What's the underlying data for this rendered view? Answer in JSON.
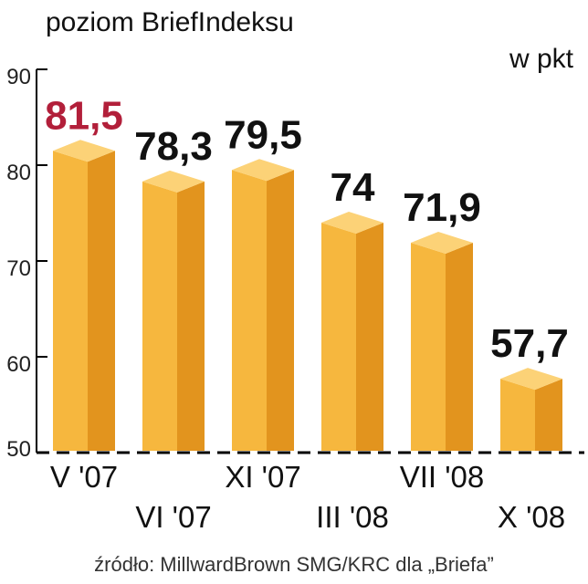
{
  "chart_data": {
    "type": "bar",
    "title": "poziom BriefIndeksu",
    "unit": "w pkt",
    "categories": [
      "V '07",
      "VI '07",
      "XI '07",
      "III '08",
      "VII '08",
      "X '08"
    ],
    "values": [
      81.5,
      78.3,
      79.5,
      74,
      71.9,
      57.7
    ],
    "value_labels": [
      "81,5",
      "78,3",
      "79,5",
      "74",
      "71,9",
      "57,7"
    ],
    "highlight_index": 0,
    "ylim": [
      50,
      90
    ],
    "yticks": [
      50,
      60,
      70,
      80,
      90
    ],
    "grid": false,
    "source": "źródło: MillwardBrown SMG/KRC dla „Briefa”",
    "colors": {
      "bar_front": "#f6b73e",
      "bar_side": "#e2941e",
      "bar_top": "#fcd277",
      "highlight_label": "#b21f3a",
      "baseline": "#000000"
    }
  }
}
